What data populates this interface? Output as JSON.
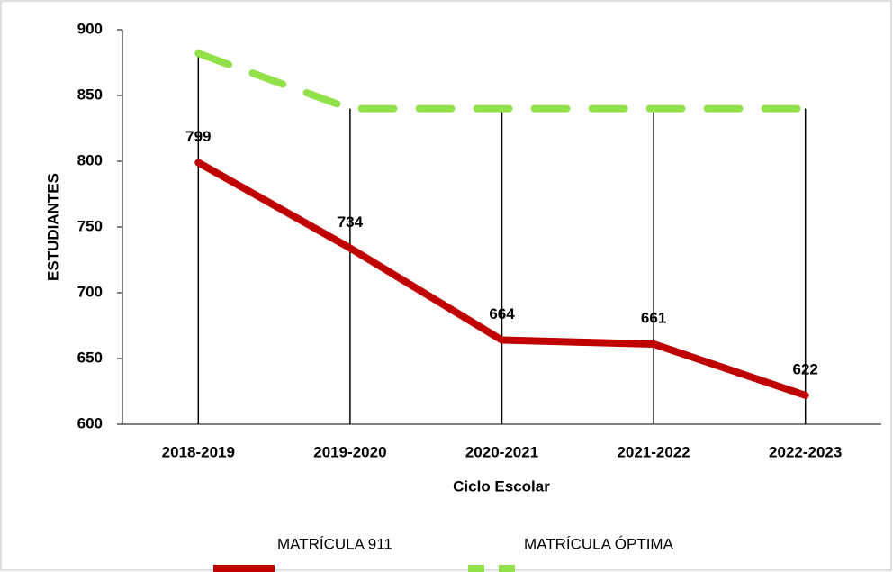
{
  "chart_data": {
    "type": "line",
    "xlabel": "Ciclo Escolar",
    "ylabel": "ESTUDIANTES",
    "categories": [
      "2018-2019",
      "2019-2020",
      "2020-2021",
      "2021-2022",
      "2022-2023"
    ],
    "series": [
      {
        "name": "MATRÍCULA 911",
        "color": "#c00000",
        "dash": false,
        "values": [
          799,
          734,
          664,
          661,
          622
        ],
        "data_labels": true
      },
      {
        "name": "MATRÍCULA ÓPTIMA",
        "color": "#92e04a",
        "dash": true,
        "values": [
          882,
          840,
          840,
          840,
          840
        ],
        "data_labels": false
      }
    ],
    "ylim": [
      600,
      900
    ],
    "yticks": [
      600,
      650,
      700,
      750,
      800,
      850,
      900
    ],
    "high_low_lines": true,
    "legend": "bottom"
  }
}
